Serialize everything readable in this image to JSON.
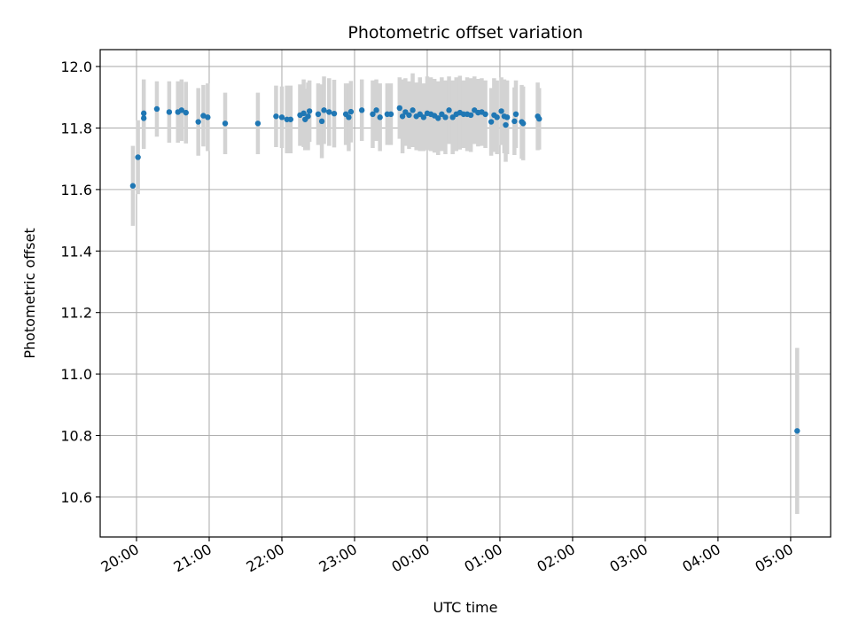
{
  "chart_data": {
    "type": "scatter",
    "title": "Photometric offset variation",
    "xlabel": "UTC time",
    "ylabel": "Photometric offset",
    "grid": true,
    "x_unit": "hours since 20:00 UTC",
    "xlim": [
      -0.5,
      9.55
    ],
    "ylim": [
      10.47,
      12.055
    ],
    "x_ticks": [
      {
        "value": 0,
        "label": "20:00"
      },
      {
        "value": 1,
        "label": "21:00"
      },
      {
        "value": 2,
        "label": "22:00"
      },
      {
        "value": 3,
        "label": "23:00"
      },
      {
        "value": 4,
        "label": "00:00"
      },
      {
        "value": 5,
        "label": "01:00"
      },
      {
        "value": 6,
        "label": "02:00"
      },
      {
        "value": 7,
        "label": "03:00"
      },
      {
        "value": 8,
        "label": "04:00"
      },
      {
        "value": 9,
        "label": "05:00"
      }
    ],
    "y_ticks": [
      {
        "value": 10.6,
        "label": "10.6"
      },
      {
        "value": 10.8,
        "label": "10.8"
      },
      {
        "value": 11.0,
        "label": "11.0"
      },
      {
        "value": 11.2,
        "label": "11.2"
      },
      {
        "value": 11.4,
        "label": "11.4"
      },
      {
        "value": 11.6,
        "label": "11.6"
      },
      {
        "value": 11.8,
        "label": "11.8"
      },
      {
        "value": 12.0,
        "label": "12.0"
      }
    ],
    "point_color": "#1f77b4",
    "errorbar_color": "#d3d3d3",
    "series": [
      {
        "points": [
          [
            -0.05,
            11.612,
            0.13
          ],
          [
            0.02,
            11.705,
            0.12
          ],
          [
            0.1,
            11.832,
            0.1
          ],
          [
            0.1,
            11.848,
            0.11
          ],
          [
            0.28,
            11.862,
            0.09
          ],
          [
            0.45,
            11.852,
            0.1
          ],
          [
            0.57,
            11.852,
            0.1
          ],
          [
            0.62,
            11.858,
            0.1
          ],
          [
            0.68,
            11.85,
            0.1
          ],
          [
            0.85,
            11.82,
            0.11
          ],
          [
            0.92,
            11.84,
            0.1
          ],
          [
            0.98,
            11.835,
            0.11
          ],
          [
            1.22,
            11.815,
            0.1
          ],
          [
            1.67,
            11.815,
            0.1
          ],
          [
            1.92,
            11.838,
            0.1
          ],
          [
            2.0,
            11.835,
            0.1
          ],
          [
            2.07,
            11.828,
            0.11
          ],
          [
            2.12,
            11.828,
            0.11
          ],
          [
            2.25,
            11.842,
            0.1
          ],
          [
            2.3,
            11.848,
            0.11
          ],
          [
            2.32,
            11.828,
            0.1
          ],
          [
            2.36,
            11.838,
            0.11
          ],
          [
            2.38,
            11.855,
            0.1
          ],
          [
            2.5,
            11.845,
            0.1
          ],
          [
            2.55,
            11.822,
            0.12
          ],
          [
            2.58,
            11.858,
            0.11
          ],
          [
            2.65,
            11.852,
            0.11
          ],
          [
            2.72,
            11.847,
            0.11
          ],
          [
            2.88,
            11.845,
            0.1
          ],
          [
            2.92,
            11.835,
            0.11
          ],
          [
            2.95,
            11.853,
            0.1
          ],
          [
            3.1,
            11.858,
            0.1
          ],
          [
            3.25,
            11.845,
            0.11
          ],
          [
            3.3,
            11.858,
            0.1
          ],
          [
            3.35,
            11.835,
            0.11
          ],
          [
            3.45,
            11.845,
            0.1
          ],
          [
            3.5,
            11.845,
            0.1
          ],
          [
            3.62,
            11.865,
            0.1
          ],
          [
            3.66,
            11.838,
            0.12
          ],
          [
            3.7,
            11.852,
            0.11
          ],
          [
            3.75,
            11.842,
            0.11
          ],
          [
            3.8,
            11.858,
            0.12
          ],
          [
            3.85,
            11.838,
            0.11
          ],
          [
            3.9,
            11.845,
            0.12
          ],
          [
            3.95,
            11.835,
            0.11
          ],
          [
            4.0,
            11.848,
            0.12
          ],
          [
            4.05,
            11.845,
            0.12
          ],
          [
            4.1,
            11.84,
            0.12
          ],
          [
            4.15,
            11.832,
            0.12
          ],
          [
            4.2,
            11.845,
            0.12
          ],
          [
            4.25,
            11.835,
            0.12
          ],
          [
            4.3,
            11.858,
            0.11
          ],
          [
            4.35,
            11.835,
            0.12
          ],
          [
            4.4,
            11.845,
            0.12
          ],
          [
            4.45,
            11.85,
            0.12
          ],
          [
            4.5,
            11.845,
            0.11
          ],
          [
            4.55,
            11.845,
            0.12
          ],
          [
            4.6,
            11.842,
            0.12
          ],
          [
            4.65,
            11.858,
            0.11
          ],
          [
            4.7,
            11.85,
            0.11
          ],
          [
            4.75,
            11.852,
            0.11
          ],
          [
            4.8,
            11.845,
            0.11
          ],
          [
            4.88,
            11.82,
            0.11
          ],
          [
            4.92,
            11.842,
            0.12
          ],
          [
            4.96,
            11.835,
            0.12
          ],
          [
            5.02,
            11.855,
            0.11
          ],
          [
            5.06,
            11.838,
            0.12
          ],
          [
            5.08,
            11.81,
            0.12
          ],
          [
            5.1,
            11.835,
            0.12
          ],
          [
            5.2,
            11.822,
            0.11
          ],
          [
            5.22,
            11.845,
            0.11
          ],
          [
            5.3,
            11.82,
            0.12
          ],
          [
            5.32,
            11.815,
            0.12
          ],
          [
            5.52,
            11.838,
            0.11
          ],
          [
            5.54,
            11.83,
            0.1
          ],
          [
            9.09,
            10.815,
            0.27
          ]
        ]
      }
    ]
  }
}
